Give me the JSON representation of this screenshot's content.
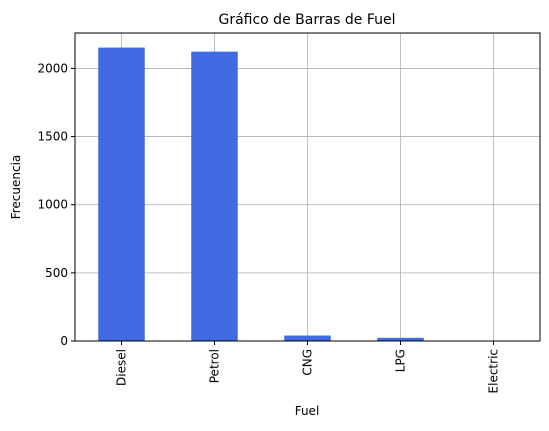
{
  "chart_data": {
    "type": "bar",
    "title": "Gráfico de Barras de Fuel",
    "xlabel": "Fuel",
    "ylabel": "Frecuencia",
    "categories": [
      "Diesel",
      "Petrol",
      "CNG",
      "LPG",
      "Electric"
    ],
    "values": [
      2153,
      2123,
      40,
      23,
      1
    ],
    "ylim": [
      0,
      2260
    ],
    "yticks": [
      0,
      500,
      1000,
      1500,
      2000
    ],
    "grid": true,
    "bar_color": "#4169e1"
  }
}
